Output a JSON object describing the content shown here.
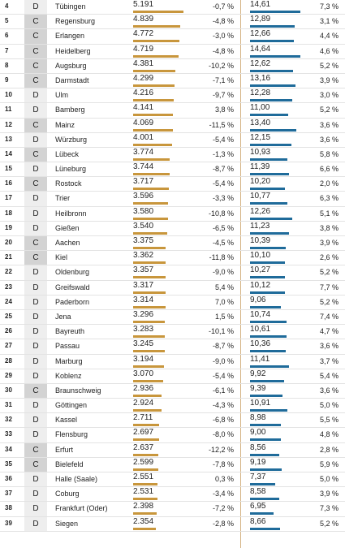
{
  "colors": {
    "bar_left": "#c8963c",
    "bar_right": "#1f6b9a",
    "type_c_bg": "#d3d3d3",
    "type_d_bg": "#eeeeee"
  },
  "rows": [
    {
      "rank": "4",
      "type": "D",
      "city": "Tübingen",
      "v1": "5.191",
      "c1": "-0,7 %",
      "v2": "14,61",
      "c2": "7,3 %"
    },
    {
      "rank": "5",
      "type": "C",
      "city": "Regensburg",
      "v1": "4.839",
      "c1": "-4,8 %",
      "v2": "12,89",
      "c2": "3,1 %"
    },
    {
      "rank": "6",
      "type": "C",
      "city": "Erlangen",
      "v1": "4.772",
      "c1": "-3,0 %",
      "v2": "12,66",
      "c2": "4,4 %"
    },
    {
      "rank": "7",
      "type": "C",
      "city": "Heidelberg",
      "v1": "4.719",
      "c1": "-4,8 %",
      "v2": "14,64",
      "c2": "4,6 %"
    },
    {
      "rank": "8",
      "type": "C",
      "city": "Augsburg",
      "v1": "4.381",
      "c1": "-10,2 %",
      "v2": "12,62",
      "c2": "5,2 %"
    },
    {
      "rank": "9",
      "type": "C",
      "city": "Darmstadt",
      "v1": "4.299",
      "c1": "-7,1 %",
      "v2": "13,16",
      "c2": "3,9 %"
    },
    {
      "rank": "10",
      "type": "D",
      "city": "Ulm",
      "v1": "4.216",
      "c1": "-9,7 %",
      "v2": "12,28",
      "c2": "3,0 %"
    },
    {
      "rank": "11",
      "type": "D",
      "city": "Bamberg",
      "v1": "4.141",
      "c1": "3,8 %",
      "v2": "11,00",
      "c2": "5,2 %"
    },
    {
      "rank": "12",
      "type": "C",
      "city": "Mainz",
      "v1": "4.069",
      "c1": "-11,5 %",
      "v2": "13,40",
      "c2": "3,6 %"
    },
    {
      "rank": "13",
      "type": "D",
      "city": "Würzburg",
      "v1": "4.001",
      "c1": "-5,4 %",
      "v2": "12,15",
      "c2": "3,6 %"
    },
    {
      "rank": "14",
      "type": "C",
      "city": "Lübeck",
      "v1": "3.774",
      "c1": "-1,3 %",
      "v2": "10,93",
      "c2": "5,8 %"
    },
    {
      "rank": "15",
      "type": "D",
      "city": "Lüneburg",
      "v1": "3.744",
      "c1": "-8,7 %",
      "v2": "11,39",
      "c2": "6,6 %"
    },
    {
      "rank": "16",
      "type": "C",
      "city": "Rostock",
      "v1": "3.717",
      "c1": "-5,4 %",
      "v2": "10,20",
      "c2": "2,0 %"
    },
    {
      "rank": "17",
      "type": "D",
      "city": "Trier",
      "v1": "3.596",
      "c1": "-3,3 %",
      "v2": "10,77",
      "c2": "6,3 %"
    },
    {
      "rank": "18",
      "type": "D",
      "city": "Heilbronn",
      "v1": "3.580",
      "c1": "-10,8 %",
      "v2": "12,26",
      "c2": "5,1 %"
    },
    {
      "rank": "19",
      "type": "D",
      "city": "Gießen",
      "v1": "3.540",
      "c1": "-6,5 %",
      "v2": "11,23",
      "c2": "3,8 %"
    },
    {
      "rank": "20",
      "type": "C",
      "city": "Aachen",
      "v1": "3.375",
      "c1": "-4,5 %",
      "v2": "10,39",
      "c2": "3,9 %"
    },
    {
      "rank": "21",
      "type": "C",
      "city": "Kiel",
      "v1": "3.362",
      "c1": "-11,8 %",
      "v2": "10,10",
      "c2": "2,6 %"
    },
    {
      "rank": "22",
      "type": "D",
      "city": "Oldenburg",
      "v1": "3.357",
      "c1": "-9,0 %",
      "v2": "10,27",
      "c2": "5,2 %"
    },
    {
      "rank": "23",
      "type": "D",
      "city": "Greifswald",
      "v1": "3.317",
      "c1": "5,4 %",
      "v2": "10,12",
      "c2": "7,7 %"
    },
    {
      "rank": "24",
      "type": "D",
      "city": "Paderborn",
      "v1": "3.314",
      "c1": "7,0 %",
      "v2": "9,06",
      "c2": "5,2 %"
    },
    {
      "rank": "25",
      "type": "D",
      "city": "Jena",
      "v1": "3.296",
      "c1": "1,5 %",
      "v2": "10,74",
      "c2": "7,4 %"
    },
    {
      "rank": "26",
      "type": "D",
      "city": "Bayreuth",
      "v1": "3.283",
      "c1": "-10,1 %",
      "v2": "10,61",
      "c2": "4,7 %"
    },
    {
      "rank": "27",
      "type": "D",
      "city": "Passau",
      "v1": "3.245",
      "c1": "-8,7 %",
      "v2": "10,36",
      "c2": "3,6 %"
    },
    {
      "rank": "28",
      "type": "D",
      "city": "Marburg",
      "v1": "3.194",
      "c1": "-9,0 %",
      "v2": "11,41",
      "c2": "3,7 %"
    },
    {
      "rank": "29",
      "type": "D",
      "city": "Koblenz",
      "v1": "3.070",
      "c1": "-5,4 %",
      "v2": "9,92",
      "c2": "5,4 %"
    },
    {
      "rank": "30",
      "type": "C",
      "city": "Braunschweig",
      "v1": "2.936",
      "c1": "-6,1 %",
      "v2": "9,39",
      "c2": "3,6 %"
    },
    {
      "rank": "31",
      "type": "D",
      "city": "Göttingen",
      "v1": "2.924",
      "c1": "-4,3 %",
      "v2": "10,91",
      "c2": "5,0 %"
    },
    {
      "rank": "32",
      "type": "D",
      "city": "Kassel",
      "v1": "2.711",
      "c1": "-6,8 %",
      "v2": "8,98",
      "c2": "5,5 %"
    },
    {
      "rank": "33",
      "type": "D",
      "city": "Flensburg",
      "v1": "2.697",
      "c1": "-8,0 %",
      "v2": "9,00",
      "c2": "4,8 %"
    },
    {
      "rank": "34",
      "type": "C",
      "city": "Erfurt",
      "v1": "2.637",
      "c1": "-12,2 %",
      "v2": "8,56",
      "c2": "2,8 %"
    },
    {
      "rank": "35",
      "type": "C",
      "city": "Bielefeld",
      "v1": "2.599",
      "c1": "-7,8 %",
      "v2": "9,19",
      "c2": "5,9 %"
    },
    {
      "rank": "36",
      "type": "D",
      "city": "Halle (Saale)",
      "v1": "2.551",
      "c1": "0,3 %",
      "v2": "7,37",
      "c2": "5,0 %"
    },
    {
      "rank": "37",
      "type": "D",
      "city": "Coburg",
      "v1": "2.531",
      "c1": "-3,4 %",
      "v2": "8,58",
      "c2": "3,9 %"
    },
    {
      "rank": "38",
      "type": "D",
      "city": "Frankfurt (Oder)",
      "v1": "2.398",
      "c1": "-7,2 %",
      "v2": "6,95",
      "c2": "7,3 %"
    },
    {
      "rank": "39",
      "type": "D",
      "city": "Siegen",
      "v1": "2.354",
      "c1": "-2,8 %",
      "v2": "8,66",
      "c2": "5,2 %"
    }
  ]
}
